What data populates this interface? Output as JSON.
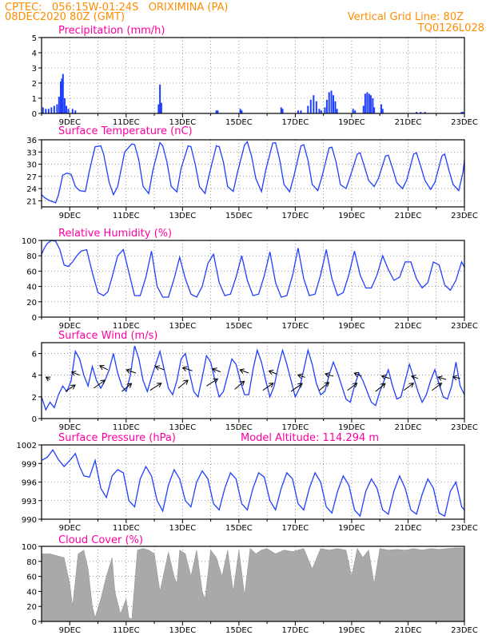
{
  "header": {
    "line1": "CPTEC:   056:15W-01:24S   ORIXIMINA (PA)",
    "line2": "08DEC2020 80Z (GMT)",
    "grid_note": "Vertical Grid Line: 80Z",
    "code": "TQ0126L028"
  },
  "colors": {
    "header": "#ff8c00",
    "title": "#ff00a0",
    "line": "#1f3fff",
    "bar": "#1f3fff",
    "cloud": "#a9a9a9",
    "arrow": "#000000"
  },
  "chart_data": [
    {
      "type": "bar",
      "title": "Precipitation (mm/h)",
      "x_unit": "day of December 2020",
      "xlim": [
        8,
        23
      ],
      "ylim": [
        0,
        5
      ],
      "yticks": [
        "0",
        "1",
        "2",
        "3",
        "4",
        "5"
      ],
      "xticks": [
        "9DEC",
        "11DEC",
        "13DEC",
        "15DEC",
        "17DEC",
        "19DEC",
        "21DEC",
        "23DEC"
      ],
      "grid": true,
      "x": [
        8.05,
        8.15,
        8.25,
        8.35,
        8.45,
        8.55,
        8.62,
        8.68,
        8.72,
        8.76,
        8.82,
        8.88,
        8.95,
        9.1,
        9.2,
        12.15,
        12.2,
        12.25,
        14.2,
        14.25,
        15.05,
        15.1,
        16.5,
        16.55,
        17.1,
        17.2,
        17.45,
        17.55,
        17.65,
        17.75,
        17.85,
        17.92,
        18.05,
        18.12,
        18.2,
        18.28,
        18.35,
        18.42,
        18.48,
        19.05,
        19.12,
        19.42,
        19.48,
        19.55,
        19.62,
        19.68,
        19.75,
        19.8,
        20.05,
        20.1,
        21.3,
        21.45,
        21.6,
        22.9,
        22.95
      ],
      "values": [
        0.4,
        0.3,
        0.3,
        0.4,
        0.5,
        0.6,
        1.1,
        2.1,
        2.3,
        2.6,
        1.0,
        0.5,
        0.3,
        0.3,
        0.2,
        0.6,
        1.9,
        0.7,
        0.2,
        0.2,
        0.3,
        0.2,
        0.4,
        0.3,
        0.2,
        0.2,
        0.5,
        0.9,
        1.2,
        0.8,
        0.3,
        0.2,
        0.4,
        0.9,
        1.4,
        1.5,
        1.2,
        0.8,
        0.3,
        0.3,
        0.2,
        0.5,
        1.3,
        1.4,
        1.3,
        1.2,
        1.0,
        0.4,
        0.6,
        0.3,
        0.1,
        0.1,
        0.1,
        0.1,
        0.1
      ]
    },
    {
      "type": "line",
      "title": "Surface Temperature (nC)",
      "x_unit": "day of December 2020",
      "xlim": [
        8,
        23
      ],
      "ylim": [
        19.5,
        36
      ],
      "yticks": [
        "21",
        "24",
        "27",
        "30",
        "33",
        "36"
      ],
      "xticks": [
        "9DEC",
        "11DEC",
        "13DEC",
        "15DEC",
        "17DEC",
        "19DEC",
        "21DEC",
        "23DEC"
      ],
      "grid": true,
      "x": [
        8,
        8.1,
        8.3,
        8.5,
        8.6,
        8.75,
        8.9,
        9.05,
        9.2,
        9.35,
        9.55,
        9.7,
        9.9,
        10.1,
        10.2,
        10.4,
        10.55,
        10.7,
        10.95,
        11.2,
        11.3,
        11.45,
        11.6,
        11.8,
        11.95,
        12.2,
        12.3,
        12.45,
        12.6,
        12.8,
        12.95,
        13.2,
        13.3,
        13.45,
        13.6,
        13.8,
        13.95,
        14.2,
        14.3,
        14.45,
        14.6,
        14.8,
        14.95,
        15.2,
        15.3,
        15.45,
        15.6,
        15.8,
        15.95,
        16.2,
        16.3,
        16.45,
        16.6,
        16.8,
        16.95,
        17.2,
        17.3,
        17.45,
        17.6,
        17.8,
        17.95,
        18.2,
        18.3,
        18.45,
        18.6,
        18.8,
        18.95,
        19.2,
        19.3,
        19.45,
        19.6,
        19.8,
        19.95,
        20.2,
        20.3,
        20.45,
        20.6,
        20.8,
        20.95,
        21.2,
        21.3,
        21.45,
        21.6,
        21.8,
        21.95,
        22.2,
        22.3,
        22.45,
        22.6,
        22.8,
        22.95,
        23
      ],
      "values": [
        22.5,
        21.8,
        21,
        20.5,
        22.5,
        27.3,
        27.8,
        27.5,
        24.5,
        23.5,
        23.3,
        28.5,
        34.3,
        34.5,
        32.5,
        25.5,
        22.5,
        24.5,
        33,
        35,
        34.8,
        31,
        24.5,
        22.8,
        28.5,
        35.3,
        34.5,
        30.5,
        24.5,
        23.2,
        29,
        34.5,
        34.3,
        30,
        24.5,
        22.8,
        27.5,
        34.5,
        34.3,
        30.5,
        24.5,
        23.3,
        28,
        34.7,
        35.5,
        32,
        26.5,
        23.3,
        28.5,
        35.2,
        35.3,
        31,
        25,
        23.2,
        27,
        34.5,
        34.8,
        31,
        25,
        23.5,
        27,
        34,
        34.2,
        30.5,
        25,
        24,
        27,
        32.5,
        32.8,
        29.5,
        26,
        24.5,
        26.5,
        32,
        32.2,
        29,
        25.5,
        24,
        26,
        32.5,
        32.8,
        29.5,
        26,
        23.8,
        25.5,
        32,
        32.5,
        28.5,
        25,
        23.5,
        28,
        31
      ]
    },
    {
      "type": "line",
      "title": "Relative Humidity (%)",
      "x_unit": "day of December 2020",
      "xlim": [
        8,
        23
      ],
      "ylim": [
        0,
        100
      ],
      "yticks": [
        "0",
        "20",
        "40",
        "60",
        "80",
        "100"
      ],
      "xticks": [
        "9DEC",
        "11DEC",
        "13DEC",
        "15DEC",
        "17DEC",
        "19DEC",
        "21DEC",
        "23DEC"
      ],
      "grid": true,
      "x": [
        8,
        8.1,
        8.2,
        8.35,
        8.5,
        8.65,
        8.8,
        8.95,
        9.1,
        9.25,
        9.4,
        9.6,
        9.8,
        10.0,
        10.2,
        10.35,
        10.5,
        10.7,
        10.9,
        11.1,
        11.3,
        11.5,
        11.7,
        11.9,
        12.1,
        12.3,
        12.5,
        12.7,
        12.9,
        13.1,
        13.3,
        13.5,
        13.7,
        13.9,
        14.1,
        14.3,
        14.5,
        14.7,
        14.9,
        15.1,
        15.3,
        15.5,
        15.7,
        15.9,
        16.1,
        16.3,
        16.5,
        16.7,
        16.9,
        17.1,
        17.3,
        17.5,
        17.7,
        17.9,
        18.1,
        18.3,
        18.5,
        18.7,
        18.9,
        19.1,
        19.3,
        19.5,
        19.7,
        19.9,
        20.1,
        20.3,
        20.5,
        20.7,
        20.9,
        21.1,
        21.3,
        21.5,
        21.7,
        21.9,
        22.1,
        22.3,
        22.5,
        22.7,
        22.9,
        23
      ],
      "values": [
        82,
        90,
        96,
        100,
        99,
        88,
        68,
        66,
        72,
        80,
        86,
        88,
        58,
        32,
        28,
        33,
        52,
        80,
        88,
        58,
        28,
        28,
        52,
        86,
        40,
        26,
        26,
        50,
        78,
        50,
        30,
        26,
        40,
        70,
        82,
        45,
        28,
        30,
        52,
        80,
        48,
        28,
        30,
        54,
        85,
        45,
        26,
        28,
        54,
        90,
        50,
        28,
        30,
        55,
        88,
        50,
        28,
        32,
        55,
        86,
        55,
        38,
        38,
        55,
        80,
        62,
        48,
        52,
        72,
        72,
        50,
        38,
        45,
        72,
        68,
        42,
        35,
        48,
        72,
        65
      ]
    },
    {
      "type": "line",
      "title": "Surface Wind (m/s)",
      "x_unit": "day of December 2020",
      "xlim": [
        8,
        23
      ],
      "ylim": [
        0,
        7
      ],
      "yticks": [
        "0",
        "2",
        "4",
        "6"
      ],
      "xticks": [
        "9DEC",
        "11DEC",
        "13DEC",
        "15DEC",
        "17DEC",
        "19DEC",
        "21DEC",
        "23DEC"
      ],
      "grid": true,
      "x": [
        8,
        8.15,
        8.3,
        8.45,
        8.6,
        8.75,
        8.9,
        9.05,
        9.2,
        9.35,
        9.5,
        9.65,
        9.8,
        9.95,
        10.1,
        10.25,
        10.4,
        10.55,
        10.7,
        10.85,
        11.0,
        11.15,
        11.3,
        11.45,
        11.6,
        11.75,
        11.9,
        12.05,
        12.2,
        12.35,
        12.5,
        12.65,
        12.8,
        12.95,
        13.1,
        13.25,
        13.4,
        13.55,
        13.7,
        13.85,
        14.0,
        14.15,
        14.3,
        14.45,
        14.6,
        14.75,
        14.9,
        15.05,
        15.2,
        15.35,
        15.5,
        15.65,
        15.8,
        15.95,
        16.1,
        16.25,
        16.4,
        16.55,
        16.7,
        16.85,
        17.0,
        17.15,
        17.3,
        17.45,
        17.6,
        17.75,
        17.9,
        18.05,
        18.2,
        18.35,
        18.5,
        18.65,
        18.8,
        18.95,
        19.1,
        19.25,
        19.4,
        19.55,
        19.7,
        19.85,
        20.0,
        20.15,
        20.3,
        20.45,
        20.6,
        20.75,
        20.9,
        21.05,
        21.2,
        21.35,
        21.5,
        21.65,
        21.8,
        21.95,
        22.1,
        22.25,
        22.4,
        22.55,
        22.7,
        22.85,
        23
      ],
      "values": [
        2.0,
        0.8,
        1.5,
        1.0,
        2.2,
        3.0,
        2.5,
        3.5,
        6.2,
        5.5,
        4.0,
        3.0,
        4.8,
        3.5,
        2.8,
        3.5,
        4.5,
        6.0,
        4.2,
        3.0,
        2.5,
        4.0,
        6.7,
        5.5,
        3.5,
        2.5,
        3.8,
        5.0,
        6.2,
        4.5,
        2.8,
        2.2,
        3.5,
        5.5,
        6.0,
        4.2,
        2.5,
        2.0,
        3.8,
        5.8,
        5.2,
        3.5,
        2.0,
        2.5,
        4.0,
        5.5,
        5.0,
        3.5,
        2.2,
        2.2,
        4.5,
        6.3,
        5.2,
        3.5,
        2.0,
        3.0,
        4.8,
        6.3,
        5.0,
        3.5,
        2.0,
        2.8,
        4.5,
        6.3,
        5.0,
        3.2,
        2.2,
        2.5,
        4.0,
        5.2,
        4.2,
        3.0,
        1.8,
        1.5,
        3.0,
        4.2,
        3.5,
        2.5,
        1.5,
        1.2,
        2.5,
        3.5,
        4.5,
        3.0,
        1.8,
        2.0,
        3.5,
        5.0,
        3.8,
        2.5,
        1.5,
        2.2,
        3.5,
        4.5,
        3.2,
        2.0,
        1.8,
        3.0,
        5.2,
        3.0,
        2.2
      ]
    },
    {
      "type": "line",
      "title": "Surface Pressure (hPa)",
      "subtitle": "Model Altitude: 114.294 m",
      "x_unit": "day of December 2020",
      "xlim": [
        8,
        23
      ],
      "ylim": [
        990,
        1002
      ],
      "yticks": [
        "990",
        "993",
        "996",
        "999",
        "1002"
      ],
      "xticks": [
        "9DEC",
        "11DEC",
        "13DEC",
        "15DEC",
        "17DEC",
        "19DEC",
        "21DEC",
        "23DEC"
      ],
      "grid": true,
      "x": [
        8,
        8.2,
        8.4,
        8.6,
        8.8,
        9.0,
        9.2,
        9.35,
        9.5,
        9.7,
        9.9,
        10.1,
        10.3,
        10.5,
        10.7,
        10.9,
        11.1,
        11.3,
        11.5,
        11.7,
        11.9,
        12.1,
        12.3,
        12.5,
        12.7,
        12.9,
        13.1,
        13.3,
        13.5,
        13.7,
        13.9,
        14.1,
        14.3,
        14.5,
        14.7,
        14.9,
        15.1,
        15.3,
        15.5,
        15.7,
        15.9,
        16.1,
        16.3,
        16.5,
        16.7,
        16.9,
        17.1,
        17.3,
        17.5,
        17.7,
        17.9,
        18.1,
        18.3,
        18.5,
        18.7,
        18.9,
        19.1,
        19.3,
        19.5,
        19.7,
        19.9,
        20.1,
        20.3,
        20.5,
        20.7,
        20.9,
        21.1,
        21.3,
        21.5,
        21.7,
        21.9,
        22.1,
        22.3,
        22.5,
        22.7,
        22.9,
        23
      ],
      "values": [
        999.5,
        1000.0,
        1001.2,
        999.6,
        998.5,
        999.5,
        1000.6,
        998.5,
        997.0,
        996.8,
        999.5,
        995.0,
        993.5,
        997.0,
        998.0,
        997.5,
        993.0,
        992.0,
        996.5,
        998.5,
        997.0,
        993.0,
        991.3,
        995.5,
        998.0,
        996.5,
        993.0,
        992.0,
        996.0,
        997.8,
        996.5,
        992.5,
        991.5,
        995.0,
        997.5,
        996.5,
        992.5,
        991.5,
        995.0,
        997.5,
        996.8,
        993.0,
        991.5,
        995.0,
        997.5,
        996.5,
        992.5,
        991.5,
        995.0,
        997.5,
        996.0,
        992.0,
        991.0,
        994.5,
        997.0,
        995.5,
        991.5,
        990.5,
        994.5,
        996.5,
        995.0,
        991.5,
        990.8,
        994.5,
        997.0,
        995.0,
        991.5,
        990.8,
        994.0,
        996.5,
        995.0,
        991.0,
        990.5,
        994.5,
        996.0,
        992.0,
        991.5
      ]
    },
    {
      "type": "area",
      "title": "Cloud Cover (%)",
      "x_unit": "day of December 2020",
      "xlim": [
        8,
        23
      ],
      "ylim": [
        0,
        100
      ],
      "yticks": [
        "0",
        "20",
        "40",
        "60",
        "80",
        "100"
      ],
      "xticks": [
        "9DEC",
        "11DEC",
        "13DEC",
        "15DEC",
        "17DEC",
        "19DEC",
        "21DEC",
        "23DEC"
      ],
      "grid": true,
      "x": [
        8,
        8.3,
        8.5,
        8.8,
        9.0,
        9.1,
        9.3,
        9.5,
        9.65,
        9.8,
        9.9,
        10.1,
        10.3,
        10.5,
        10.6,
        10.8,
        11.0,
        11.1,
        11.2,
        11.4,
        11.6,
        11.8,
        12.0,
        12.2,
        12.5,
        12.7,
        12.8,
        12.9,
        13.1,
        13.3,
        13.5,
        13.7,
        13.8,
        14.0,
        14.2,
        14.4,
        14.6,
        14.8,
        15.0,
        15.2,
        15.4,
        15.6,
        15.8,
        16.0,
        16.3,
        16.6,
        16.9,
        17.1,
        17.3,
        17.6,
        17.9,
        18.2,
        18.5,
        18.8,
        19.0,
        19.2,
        19.4,
        19.6,
        19.8,
        20.0,
        20.3,
        20.6,
        20.9,
        21.2,
        21.5,
        21.8,
        22.1,
        22.4,
        22.7,
        23
      ],
      "values": [
        90,
        90,
        88,
        85,
        50,
        20,
        90,
        95,
        70,
        20,
        5,
        30,
        60,
        85,
        40,
        10,
        30,
        5,
        3,
        95,
        97,
        95,
        90,
        40,
        92,
        60,
        50,
        95,
        90,
        60,
        95,
        40,
        30,
        95,
        85,
        60,
        95,
        40,
        95,
        35,
        97,
        90,
        95,
        97,
        90,
        95,
        93,
        95,
        97,
        70,
        97,
        95,
        97,
        95,
        60,
        97,
        85,
        95,
        50,
        97,
        95,
        96,
        95,
        97,
        95,
        97,
        96,
        97,
        98,
        98
      ]
    }
  ],
  "wind_arrows": {
    "x": [
      8.3,
      8.85,
      9.35,
      9.85,
      10.35,
      10.85,
      11.35,
      11.85,
      12.35,
      12.85,
      13.35,
      13.85,
      14.35,
      14.85,
      15.35,
      15.85,
      16.35,
      16.85,
      17.35,
      17.85,
      18.35,
      18.85,
      19.35,
      19.85,
      20.35,
      20.85,
      21.35,
      21.85,
      22.35,
      22.85
    ],
    "y": [
      3.6,
      2.5,
      4.0,
      2.8,
      4.5,
      2.5,
      4.2,
      2.6,
      4.5,
      2.8,
      4.4,
      3.0,
      4.3,
      2.7,
      4.2,
      2.6,
      4.1,
      2.5,
      3.8,
      2.6,
      3.9,
      2.6,
      3.9,
      2.5,
      3.7,
      2.6,
      3.7,
      2.6,
      3.6,
      3.7
    ],
    "u": [
      -5,
      12,
      -10,
      14,
      -10,
      12,
      -12,
      14,
      -11,
      12,
      -12,
      14,
      -10,
      12,
      -11,
      13,
      -10,
      14,
      -9,
      12,
      -10,
      12,
      -9,
      12,
      -10,
      12,
      -8,
      12,
      -10,
      -9
    ],
    "v": [
      3,
      8,
      4,
      10,
      5,
      10,
      4,
      9,
      4,
      10,
      4,
      9,
      4,
      10,
      4,
      9,
      4,
      10,
      3,
      10,
      3,
      9,
      4,
      10,
      3,
      9,
      3,
      9,
      3,
      2
    ]
  }
}
